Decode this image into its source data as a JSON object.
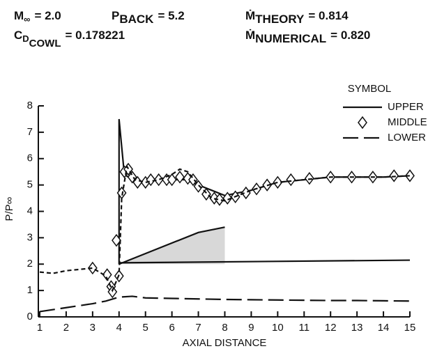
{
  "chart_data": {
    "type": "line",
    "annotations": [
      {
        "base": "M",
        "sub": "∞",
        "text": "= 2.0"
      },
      {
        "base": "P",
        "sub": "BACK",
        "text": "= 5.2"
      },
      {
        "base": "Ṁ",
        "sub": "THEORY",
        "text": "= 0.814"
      },
      {
        "base": "C",
        "sub": "D",
        "sub2": "COWL",
        "text": "= 0.178221"
      },
      {
        "base": "Ṁ",
        "sub": "NUMERICAL",
        "text": "= 0.820"
      }
    ],
    "xlabel": "AXIAL DISTANCE",
    "ylabel": "P/P∞",
    "legend_title": "SYMBOL",
    "xlim": [
      1,
      15
    ],
    "xticks": [
      1,
      2,
      3,
      4,
      5,
      6,
      7,
      8,
      9,
      10,
      11,
      12,
      13,
      14,
      15
    ],
    "ylim": [
      0,
      8
    ],
    "yticks": [
      0,
      1,
      2,
      3,
      4,
      5,
      6,
      7,
      8
    ],
    "series": [
      {
        "name": "UPPER",
        "color": "#111",
        "line": "solid",
        "marker": null,
        "x": [
          4,
          4,
          4.2,
          4.5,
          5,
          5.5,
          6,
          6.5,
          7,
          7.5,
          8,
          9,
          10,
          11,
          12,
          13,
          14,
          15
        ],
        "values": [
          2.0,
          7.5,
          5.4,
          5.2,
          5.1,
          5.2,
          5.2,
          5.2,
          5.0,
          4.8,
          4.6,
          4.8,
          5.1,
          5.2,
          5.3,
          5.3,
          5.3,
          5.35
        ]
      },
      {
        "name": "MIDDLE",
        "color": "#111",
        "line": "none",
        "marker": "diamond",
        "x": [
          3,
          3.55,
          3.7,
          3.75,
          3.9,
          4,
          4.1,
          4.2,
          4.35,
          4.5,
          4.7,
          5,
          5.2,
          5.5,
          5.8,
          6,
          6.3,
          6.6,
          6.8,
          7,
          7.3,
          7.6,
          7.8,
          8.1,
          8.4,
          8.8,
          9.2,
          9.6,
          10,
          10.5,
          11.2,
          12,
          12.8,
          13.6,
          14.4,
          15
        ],
        "values": [
          1.85,
          1.6,
          1.15,
          0.95,
          2.9,
          1.55,
          4.7,
          5.5,
          5.6,
          5.3,
          5.1,
          5.1,
          5.2,
          5.2,
          5.2,
          5.2,
          5.3,
          5.25,
          5.2,
          4.95,
          4.65,
          4.5,
          4.45,
          4.5,
          4.55,
          4.7,
          4.85,
          5.0,
          5.1,
          5.2,
          5.25,
          5.3,
          5.3,
          5.3,
          5.35,
          5.35
        ]
      },
      {
        "name": "LOWER",
        "color": "#111",
        "line": "longdash",
        "marker": null,
        "x": [
          1,
          2,
          3,
          3.5,
          4,
          4.5,
          5,
          6,
          7,
          8,
          9,
          10,
          11,
          12,
          13,
          14,
          15
        ],
        "values": [
          0.2,
          0.35,
          0.5,
          0.6,
          0.75,
          0.78,
          0.72,
          0.7,
          0.68,
          0.66,
          0.65,
          0.64,
          0.63,
          0.62,
          0.62,
          0.61,
          0.6
        ]
      },
      {
        "color": "#111",
        "line": "dash",
        "marker": null,
        "x": [
          1,
          1.5,
          2,
          2.5,
          3,
          3.5,
          3.75,
          4,
          4.1,
          4.3,
          4.6,
          5,
          5.5,
          6,
          6.3,
          6.6,
          7,
          7.5,
          8,
          9,
          10,
          11,
          12,
          13,
          14,
          15
        ],
        "values": [
          1.7,
          1.65,
          1.75,
          1.8,
          1.85,
          1.55,
          1.0,
          1.6,
          4.5,
          5.7,
          5.2,
          5.1,
          5.2,
          5.4,
          5.6,
          5.5,
          5.0,
          4.5,
          4.4,
          4.8,
          5.1,
          5.2,
          5.3,
          5.3,
          5.3,
          5.35
        ]
      },
      {
        "color": "#111",
        "line": "solid",
        "marker": null,
        "shade": true,
        "x": [
          4,
          7,
          8
        ],
        "values": [
          2.0,
          3.2,
          3.4
        ]
      },
      {
        "color": "#111",
        "line": "solid",
        "marker": null,
        "x": [
          4,
          15
        ],
        "values": [
          2.05,
          2.15
        ]
      }
    ]
  }
}
